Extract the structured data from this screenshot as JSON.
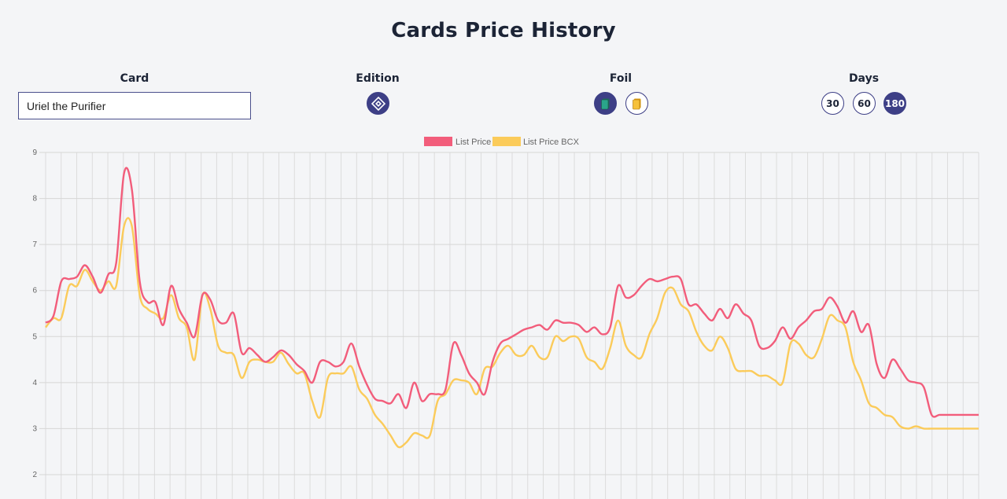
{
  "page": {
    "title": "Cards Price History"
  },
  "filters": {
    "card": {
      "label": "Card",
      "value": "Uriel the Purifier"
    },
    "edition": {
      "label": "Edition",
      "icon": "edition-diamond-icon"
    },
    "foil": {
      "label": "Foil",
      "regular_icon": "regular-card-icon",
      "gold_icon": "gold-card-icon"
    },
    "days": {
      "label": "Days",
      "options": [
        "30",
        "60",
        "180"
      ],
      "selected": "180"
    }
  },
  "colors": {
    "accent": "#3d3f86",
    "list_price": "#f25d7b",
    "list_price_bcx": "#fbcb5a"
  },
  "chart_data": {
    "type": "line",
    "title": "",
    "xlabel": "",
    "ylabel": "",
    "ylim": [
      2,
      9
    ],
    "yticks": [
      "2",
      "3",
      "4",
      "5",
      "6",
      "7",
      "8",
      "9"
    ],
    "grid": true,
    "legend_position": "top-center",
    "x_count": 120,
    "series": [
      {
        "name": "List Price",
        "color": "#f25d7b",
        "values": [
          5.3,
          5.45,
          6.2,
          6.25,
          6.3,
          6.55,
          6.3,
          5.95,
          6.35,
          6.6,
          8.55,
          8.2,
          6.2,
          5.75,
          5.75,
          5.25,
          6.1,
          5.6,
          5.3,
          5.0,
          5.9,
          5.8,
          5.35,
          5.3,
          5.5,
          4.65,
          4.75,
          4.6,
          4.45,
          4.55,
          4.7,
          4.6,
          4.4,
          4.25,
          4.0,
          4.45,
          4.45,
          4.35,
          4.45,
          4.85,
          4.35,
          3.95,
          3.65,
          3.6,
          3.55,
          3.75,
          3.45,
          4.0,
          3.6,
          3.75,
          3.75,
          3.85,
          4.85,
          4.6,
          4.2,
          4.0,
          3.75,
          4.45,
          4.85,
          4.95,
          5.05,
          5.15,
          5.2,
          5.25,
          5.15,
          5.35,
          5.3,
          5.3,
          5.25,
          5.1,
          5.2,
          5.05,
          5.2,
          6.1,
          5.85,
          5.9,
          6.1,
          6.25,
          6.2,
          6.25,
          6.3,
          6.25,
          5.7,
          5.7,
          5.5,
          5.35,
          5.6,
          5.4,
          5.7,
          5.5,
          5.35,
          4.8,
          4.75,
          4.9,
          5.2,
          4.95,
          5.2,
          5.35,
          5.55,
          5.6,
          5.85,
          5.65,
          5.3,
          5.55,
          5.1,
          5.25,
          4.4,
          4.1,
          4.5,
          4.3,
          4.05,
          4.0,
          3.9,
          3.3,
          3.3,
          3.3,
          3.3,
          3.3,
          3.3,
          3.3
        ]
      },
      {
        "name": "List Price BCX",
        "color": "#fbcb5a",
        "values": [
          5.2,
          5.4,
          5.4,
          6.1,
          6.1,
          6.45,
          6.2,
          6.0,
          6.2,
          6.1,
          7.4,
          7.4,
          5.9,
          5.6,
          5.5,
          5.4,
          5.9,
          5.4,
          5.2,
          4.5,
          5.9,
          5.6,
          4.8,
          4.65,
          4.6,
          4.1,
          4.45,
          4.5,
          4.45,
          4.45,
          4.65,
          4.4,
          4.2,
          4.2,
          3.6,
          3.25,
          4.1,
          4.2,
          4.2,
          4.35,
          3.85,
          3.65,
          3.3,
          3.1,
          2.85,
          2.6,
          2.7,
          2.9,
          2.85,
          2.85,
          3.6,
          3.75,
          4.05,
          4.05,
          4.0,
          3.75,
          4.3,
          4.35,
          4.65,
          4.8,
          4.6,
          4.6,
          4.8,
          4.55,
          4.55,
          5.0,
          4.9,
          5.0,
          4.95,
          4.55,
          4.45,
          4.3,
          4.75,
          5.35,
          4.8,
          4.6,
          4.55,
          5.05,
          5.4,
          5.95,
          6.05,
          5.7,
          5.55,
          5.1,
          4.8,
          4.7,
          5.0,
          4.75,
          4.3,
          4.25,
          4.25,
          4.15,
          4.15,
          4.05,
          4.0,
          4.85,
          4.85,
          4.6,
          4.55,
          4.95,
          5.45,
          5.35,
          5.2,
          4.45,
          4.05,
          3.55,
          3.45,
          3.3,
          3.25,
          3.05,
          3.0,
          3.05,
          3.0,
          3.0,
          3.0,
          3.0,
          3.0,
          3.0,
          3.0,
          3.0
        ]
      }
    ]
  }
}
